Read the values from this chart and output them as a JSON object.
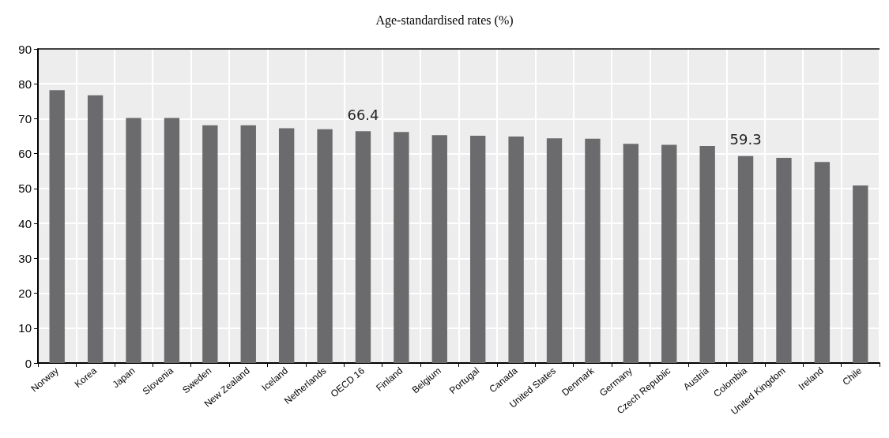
{
  "chart_data": {
    "type": "bar",
    "title": "Age-standardised rates (%)",
    "categories": [
      "Norway",
      "Korea",
      "Japan",
      "Slovenia",
      "Sweden",
      "New Zealand",
      "Iceland",
      "Netherlands",
      "OECD 16",
      "Finland",
      "Belgium",
      "Portugal",
      "Canada",
      "United States",
      "Denmark",
      "Germany",
      "Czech Republic",
      "Austria",
      "Colombia",
      "United Kingdom",
      "Ireland",
      "Chile"
    ],
    "values": [
      78.2,
      76.7,
      70.2,
      70.2,
      68.1,
      68.1,
      67.3,
      67.0,
      66.4,
      66.2,
      65.3,
      65.1,
      64.9,
      64.4,
      64.3,
      62.8,
      62.5,
      62.2,
      59.3,
      58.8,
      57.6,
      50.9
    ],
    "value_labels": [
      null,
      null,
      null,
      null,
      null,
      null,
      null,
      null,
      "66.4",
      null,
      null,
      null,
      null,
      null,
      null,
      null,
      null,
      null,
      "59.3",
      null,
      null,
      null
    ],
    "color": "#6b6b6d",
    "ylim": [
      0,
      90
    ],
    "yticks": [
      0,
      10,
      20,
      30,
      40,
      50,
      60,
      70,
      80,
      90
    ],
    "grid": true
  }
}
